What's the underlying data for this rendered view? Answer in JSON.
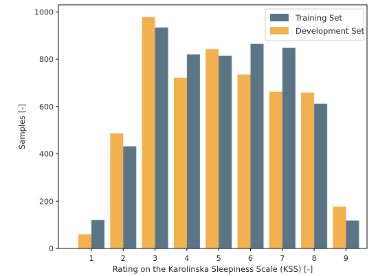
{
  "chart_data": {
    "type": "bar",
    "categories": [
      "1",
      "2",
      "3",
      "4",
      "5",
      "6",
      "7",
      "8",
      "9"
    ],
    "series": [
      {
        "name": "Development Set",
        "color": "#f2b04f",
        "values": [
          60,
          487,
          978,
          722,
          843,
          735,
          663,
          659,
          177
        ]
      },
      {
        "name": "Training Set",
        "color": "#5a7686",
        "values": [
          120,
          432,
          934,
          820,
          815,
          865,
          848,
          612,
          118
        ]
      }
    ],
    "legend_order": [
      "Training Set",
      "Development Set"
    ],
    "legend_position": "top-right",
    "xlabel": "Rating on the Karolinska Sleepiness Scale (KSS) [-]",
    "ylabel": "Samples [-]",
    "ylim": [
      0,
      1030
    ],
    "yticks": [
      0,
      200,
      400,
      600,
      800,
      1000
    ],
    "grid": false
  }
}
